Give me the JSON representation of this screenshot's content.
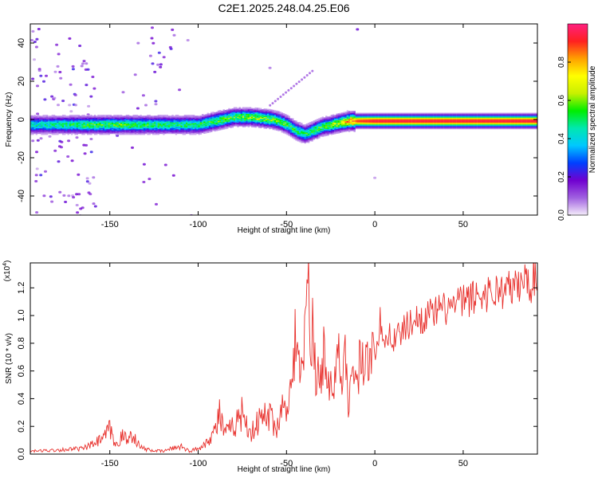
{
  "title": "C2E1.2025.248.04.25.E06",
  "chart_data": [
    {
      "type": "heatmap",
      "title": "C2E1.2025.248.04.25.E06",
      "xlabel": "Height of straight line (km)",
      "ylabel": "Frequency (Hz)",
      "xlim": [
        -195,
        92
      ],
      "ylim": [
        -50,
        50
      ],
      "xticks": [
        -150,
        -100,
        -50,
        0,
        50
      ],
      "yticks": [
        -40,
        -20,
        0,
        20,
        40
      ],
      "colorbar": {
        "label": "Normalized spectral amplitude",
        "range": [
          0,
          1
        ],
        "ticks": [
          "0.0",
          "0.2",
          "0.4",
          "0.6",
          "0.8"
        ],
        "colors": [
          "#f4ecfa",
          "#a060e0",
          "#7000d0",
          "#0040ff",
          "#00c8ff",
          "#00e8b0",
          "#00ee00",
          "#c8f000",
          "#ffff00",
          "#ffa000",
          "#ff2020",
          "#ff2080"
        ]
      },
      "ridge": {
        "x": [
          -190,
          -175,
          -160,
          -140,
          -120,
          -100,
          -90,
          -80,
          -70,
          -60,
          -55,
          -50,
          -45,
          -40,
          -35,
          -30,
          -25,
          -20,
          -15,
          -10,
          0,
          20,
          50,
          90
        ],
        "freq": [
          -3,
          -3,
          -3,
          -3,
          -3,
          -3,
          -1,
          1,
          1,
          0,
          -1,
          -3,
          -6,
          -8,
          -6,
          -4,
          -3,
          -2,
          -1,
          -1,
          -1,
          -1,
          -1,
          -1
        ],
        "peak_amplitude": [
          0.45,
          0.5,
          0.55,
          0.55,
          0.5,
          0.5,
          0.55,
          0.55,
          0.6,
          0.6,
          0.55,
          0.55,
          0.5,
          0.5,
          0.55,
          0.55,
          0.6,
          0.65,
          0.8,
          0.9,
          0.95,
          0.95,
          0.95,
          0.95
        ]
      }
    },
    {
      "type": "line",
      "xlabel": "Height of straight line (km)",
      "ylabel": "SNR (10 * v/v)",
      "multiplier_label": "(x10",
      "multiplier_exp": "4",
      "xlim": [
        -195,
        92
      ],
      "ylim": [
        0,
        1.38
      ],
      "xticks": [
        -150,
        -100,
        -50,
        0,
        50
      ],
      "yticks": [
        "0.0",
        "0.2",
        "0.4",
        "0.6",
        "0.8",
        "1.0",
        "1.2"
      ],
      "line_color": "#e8302c",
      "series": [
        {
          "name": "SNR",
          "x": [
            -195,
            -180,
            -165,
            -158,
            -153,
            -150,
            -147,
            -143,
            -140,
            -137,
            -133,
            -128,
            -120,
            -110,
            -105,
            -100,
            -95,
            -90,
            -88,
            -85,
            -80,
            -75,
            -70,
            -65,
            -60,
            -55,
            -52,
            -50,
            -47,
            -45,
            -42,
            -40,
            -38,
            -36,
            -35,
            -33,
            -30,
            -28,
            -25,
            -22,
            -20,
            -18,
            -16,
            -15,
            -13,
            -10,
            -8,
            -5,
            -3,
            0,
            3,
            5,
            8,
            10,
            15,
            20,
            30,
            40,
            50,
            60,
            70,
            80,
            85,
            88,
            90,
            92
          ],
          "y": [
            0.02,
            0.03,
            0.04,
            0.08,
            0.12,
            0.18,
            0.06,
            0.13,
            0.1,
            0.15,
            0.05,
            0.03,
            0.02,
            0.06,
            0.02,
            0.04,
            0.09,
            0.18,
            0.3,
            0.14,
            0.2,
            0.3,
            0.15,
            0.25,
            0.28,
            0.2,
            0.35,
            0.42,
            0.45,
            0.9,
            0.5,
            0.75,
            1.3,
            0.65,
            1.05,
            0.5,
            0.6,
            0.8,
            0.45,
            0.55,
            0.7,
            0.5,
            0.8,
            0.4,
            0.6,
            0.5,
            0.75,
            0.6,
            0.8,
            0.72,
            0.95,
            0.75,
            0.9,
            0.82,
            0.88,
            0.95,
            1.0,
            1.05,
            1.1,
            1.15,
            1.18,
            1.2,
            1.26,
            1.22,
            1.28,
            1.3
          ]
        }
      ]
    }
  ]
}
